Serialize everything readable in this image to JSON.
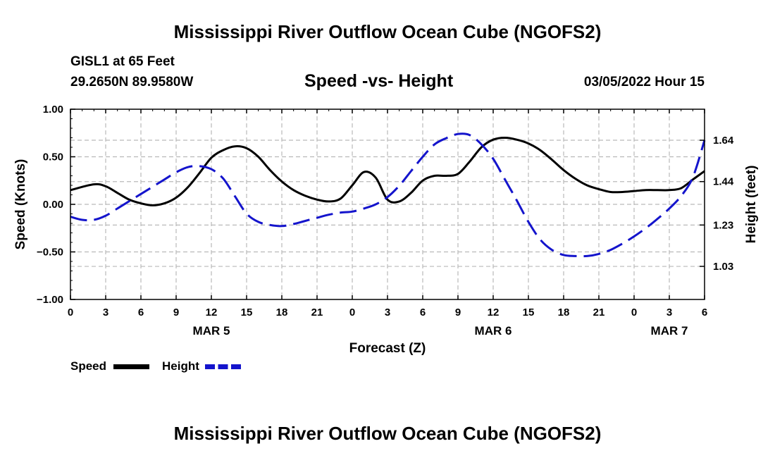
{
  "page_title": "Mississippi River Outflow Ocean Cube (NGOFS2)",
  "station": "GISL1 at 65 Feet",
  "coordinates": "29.2650N  89.9580W",
  "subtitle": "Speed -vs- Height",
  "datetime": "03/05/2022 Hour 15",
  "footer_title": "Mississippi River Outflow Ocean Cube (NGOFS2)",
  "chart_data": {
    "type": "line",
    "title": "Speed -vs- Height",
    "xlabel": "Forecast (Z)",
    "ylabel_left": "Speed (Knots)",
    "ylabel_right": "Height (feet)",
    "x_unit": "hours since MAR 5 00Z",
    "xlim": [
      0,
      54
    ],
    "ylim_left": [
      -1.0,
      1.0
    ],
    "ylim_right": [
      0.87,
      1.79
    ],
    "x_ticks": [
      0,
      3,
      6,
      9,
      12,
      15,
      18,
      21,
      24,
      27,
      30,
      33,
      36,
      39,
      42,
      45,
      48,
      51,
      54
    ],
    "x_tick_labels": [
      "0",
      "3",
      "6",
      "9",
      "12",
      "15",
      "18",
      "21",
      "0",
      "3",
      "6",
      "9",
      "12",
      "15",
      "18",
      "21",
      "0",
      "3",
      "6"
    ],
    "date_labels": [
      {
        "x": 12,
        "text": "MAR 5"
      },
      {
        "x": 36,
        "text": "MAR 6"
      },
      {
        "x": 51,
        "text": "MAR 7"
      }
    ],
    "y_ticks_left": [
      -1.0,
      -0.5,
      0.0,
      0.5,
      1.0
    ],
    "y_tick_labels_left": [
      "−1.00",
      "−0.50",
      "0.00",
      "0.50",
      "1.00"
    ],
    "y_ticks_right": [
      1.03,
      1.23,
      1.44,
      1.64
    ],
    "y_tick_labels_right": [
      "1.03",
      "1.23",
      "1.44",
      "1.64"
    ],
    "grid": true,
    "series": [
      {
        "name": "Speed",
        "axis": "left",
        "color": "#000000",
        "dash": "solid",
        "x": [
          0,
          2,
          3,
          4,
          5,
          6,
          7,
          8,
          9,
          10,
          11,
          12,
          13,
          14,
          15,
          16,
          17,
          18,
          19,
          20,
          21,
          22,
          23,
          24,
          25,
          26,
          27,
          28,
          29,
          30,
          31,
          32,
          33,
          34,
          35,
          36,
          37,
          38,
          39,
          40,
          41,
          42,
          43,
          44,
          45,
          46,
          47,
          48,
          49,
          50,
          51,
          52,
          53,
          54
        ],
        "values": [
          0.15,
          0.21,
          0.19,
          0.12,
          0.05,
          0.01,
          -0.01,
          0.01,
          0.07,
          0.18,
          0.33,
          0.49,
          0.57,
          0.61,
          0.59,
          0.5,
          0.36,
          0.24,
          0.15,
          0.09,
          0.05,
          0.03,
          0.06,
          0.2,
          0.34,
          0.28,
          0.05,
          0.03,
          0.12,
          0.25,
          0.3,
          0.3,
          0.32,
          0.45,
          0.6,
          0.68,
          0.7,
          0.68,
          0.64,
          0.57,
          0.47,
          0.36,
          0.27,
          0.2,
          0.16,
          0.13,
          0.13,
          0.14,
          0.15,
          0.15,
          0.15,
          0.17,
          0.26,
          0.35
        ]
      },
      {
        "name": "Height",
        "axis": "right",
        "color": "#1414cc",
        "dash": "dashed",
        "x": [
          0,
          1,
          2,
          3,
          4,
          5,
          6,
          7,
          8,
          9,
          10,
          11,
          12,
          13,
          14,
          15,
          16,
          17,
          18,
          19,
          20,
          21,
          22,
          23,
          24,
          25,
          26,
          27,
          28,
          29,
          30,
          31,
          32,
          33,
          34,
          35,
          36,
          37,
          38,
          39,
          40,
          41,
          42,
          43,
          44,
          45,
          46,
          47,
          48,
          49,
          50,
          51,
          52,
          53,
          54
        ],
        "values": [
          1.27,
          1.255,
          1.255,
          1.275,
          1.31,
          1.345,
          1.38,
          1.415,
          1.45,
          1.485,
          1.51,
          1.515,
          1.5,
          1.455,
          1.37,
          1.285,
          1.245,
          1.23,
          1.225,
          1.235,
          1.25,
          1.265,
          1.28,
          1.29,
          1.295,
          1.31,
          1.33,
          1.365,
          1.42,
          1.49,
          1.56,
          1.62,
          1.65,
          1.67,
          1.665,
          1.62,
          1.55,
          1.45,
          1.35,
          1.245,
          1.16,
          1.11,
          1.085,
          1.08,
          1.08,
          1.09,
          1.11,
          1.14,
          1.175,
          1.215,
          1.26,
          1.31,
          1.37,
          1.46,
          1.64
        ]
      }
    ],
    "legend": [
      {
        "label": "Speed",
        "color": "#000000",
        "dash": "solid"
      },
      {
        "label": "Height",
        "color": "#1414cc",
        "dash": "dashed"
      }
    ],
    "legend_position": "bottom-left"
  }
}
